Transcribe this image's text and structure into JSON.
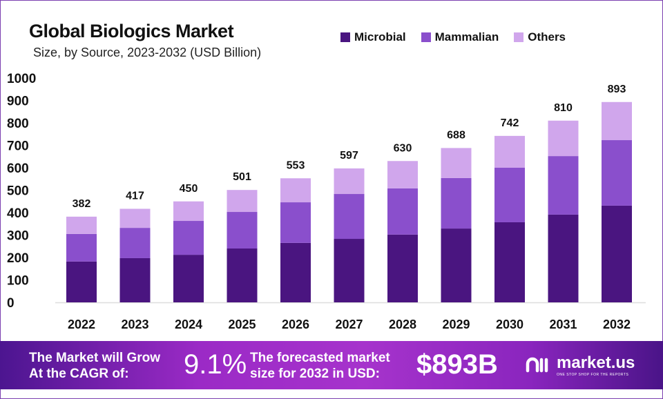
{
  "chart_data": {
    "type": "bar",
    "stacked": true,
    "title": "Global Biologics Market",
    "subtitle": "Size, by Source, 2023-2032 (USD Billion)",
    "xlabel": "",
    "ylabel": "",
    "ylim": [
      0,
      1000
    ],
    "yticks": [
      0,
      100,
      200,
      300,
      400,
      500,
      600,
      700,
      800,
      900,
      1000
    ],
    "categories": [
      "2022",
      "2023",
      "2024",
      "2025",
      "2026",
      "2027",
      "2028",
      "2029",
      "2030",
      "2031",
      "2032"
    ],
    "totals": [
      382,
      417,
      450,
      501,
      553,
      597,
      630,
      688,
      742,
      810,
      893
    ],
    "series": [
      {
        "name": "Microbial",
        "color": "#4a1580",
        "values": [
          182,
          197,
          212,
          240,
          265,
          283,
          302,
          329,
          357,
          391,
          431
        ]
      },
      {
        "name": "Mammalian",
        "color": "#8a4fcc",
        "values": [
          123,
          135,
          151,
          163,
          181,
          200,
          206,
          225,
          243,
          261,
          292
        ]
      },
      {
        "name": "Others",
        "color": "#d0a6ec",
        "values": [
          77,
          85,
          87,
          98,
          107,
          114,
          122,
          134,
          142,
          158,
          170
        ]
      }
    ],
    "legend": "top-right",
    "grid": false
  },
  "banner": {
    "cagr_label": "The Market will Grow At the CAGR of:",
    "cagr_value": "9.1%",
    "forecast_label": "The forecasted market size for 2032 in USD:",
    "forecast_value": "$893B",
    "logo_name": "market.us",
    "logo_tagline": "ONE STOP SHOP FOR THE REPORTS"
  }
}
